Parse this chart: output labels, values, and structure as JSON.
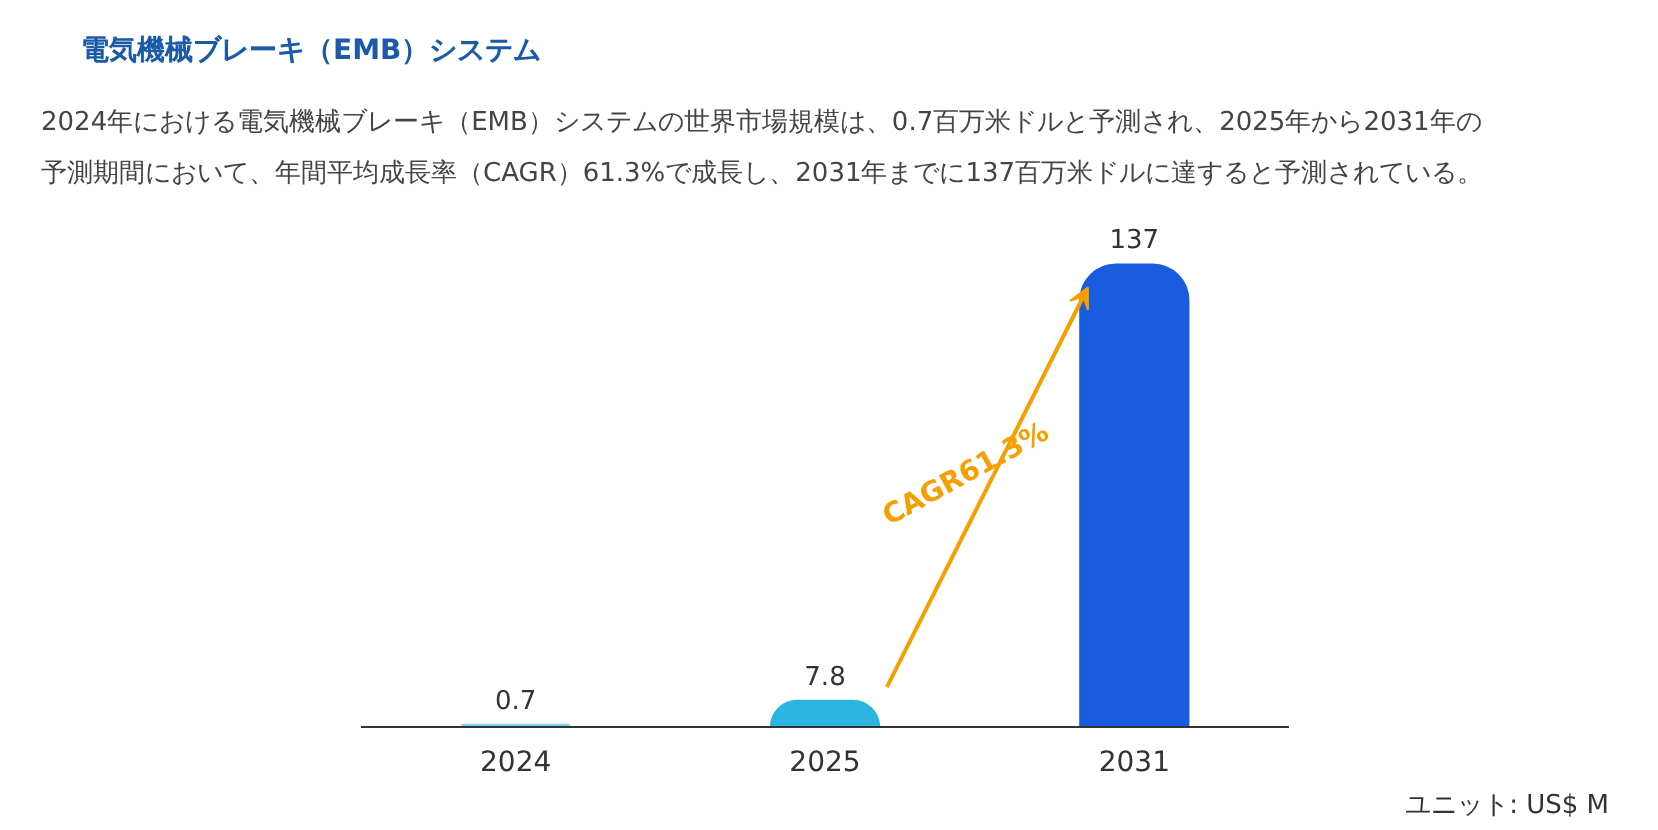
{
  "chart_data": {
    "type": "bar",
    "title": "電気機械ブレーキ（EMB）システム",
    "subtitle": "2024年における電気機械ブレーキ（EMB）システムの世界市場規模は、0.7百万米ドルと予測され、2025年から2031年の予測期間において、年間平均成長率（CAGR）61.3%で成長し、2031年までに137百万米ドルに達すると予測されている。",
    "categories": [
      "2024",
      "2025",
      "2031"
    ],
    "values": [
      0.7,
      7.8,
      137
    ],
    "colors": [
      "#7fd3f0",
      "#2bb5e0",
      "#1a5ce0"
    ],
    "data_labels": true,
    "annotations": [
      "CAGR61.3%",
      "ユニット: US$ M"
    ],
    "grid": false
  }
}
